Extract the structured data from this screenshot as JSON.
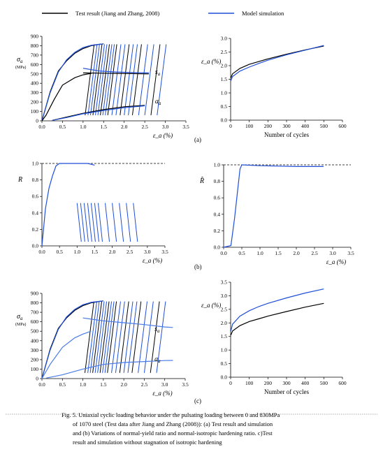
{
  "legend": {
    "test_label": "Test result (Jiang and Zhang, 2008)",
    "model_label": "Model simulation"
  },
  "colors": {
    "test": "#000000",
    "model": "#1f4fd8",
    "model_light": "#4a7be6"
  },
  "panel_labels": {
    "a": "(a)",
    "b": "(b)",
    "c": "(c)"
  },
  "caption": {
    "line1": "Fig. 5.  Uniaxial cyclic loading behavior under the pulsating loading between 0 and 830MPa",
    "line2": "of 1070 steel (Test data after Jiang and Zhang (2008)): (a) Test result and simulation",
    "line3": "and (b) Variations of normal-yield ratio and normal-isotropic hardening ratio. c)Test",
    "line4": "result and simulation without stagnation of isotropic hardening"
  },
  "chart_data": [
    {
      "id": "a-left",
      "type": "line",
      "ylabel": "σ_a",
      "yunit": "(MPa)",
      "xlabel": "ε_a (%)",
      "xlim": [
        0,
        3.5
      ],
      "ylim": [
        0,
        900
      ],
      "xticks": [
        "0.0",
        "0.5",
        "1.0",
        "1.5",
        "2.0",
        "2.5",
        "3.0",
        "3.5"
      ],
      "yticks": [
        "0",
        "100",
        "200",
        "300",
        "400",
        "500",
        "600",
        "700",
        "800",
        "900"
      ],
      "annotations": [
        "s_a",
        "a_a"
      ],
      "series": [
        {
          "role": "test",
          "x": [
            0,
            0.2,
            0.4,
            0.6,
            0.8,
            1.0,
            1.2,
            1.4,
            1.5
          ],
          "y": [
            0,
            310,
            530,
            640,
            720,
            770,
            800,
            815,
            820
          ]
        },
        {
          "role": "model",
          "x": [
            0,
            0.2,
            0.4,
            0.6,
            0.8,
            1.0,
            1.2,
            1.4,
            1.5
          ],
          "y": [
            0,
            300,
            520,
            650,
            730,
            780,
            805,
            815,
            820
          ]
        },
        {
          "role": "test",
          "x": [
            0,
            0.1,
            0.3,
            0.5,
            0.8,
            1.0,
            1.2
          ],
          "y": [
            0,
            60,
            230,
            380,
            460,
            490,
            505
          ]
        },
        {
          "role": "test",
          "x": [
            1.0,
            1.4,
            1.8,
            2.2,
            2.6
          ],
          "y": [
            510,
            508,
            505,
            503,
            500
          ]
        },
        {
          "role": "model",
          "x": [
            1.0,
            1.4,
            1.8,
            2.2,
            2.6
          ],
          "y": [
            560,
            530,
            520,
            515,
            510
          ]
        },
        {
          "role": "test",
          "x": [
            0.25,
            0.6,
            1.0,
            1.5,
            2.0,
            2.5
          ],
          "y": [
            5,
            40,
            80,
            120,
            150,
            165
          ]
        },
        {
          "role": "model",
          "x": [
            0.25,
            0.6,
            1.0,
            1.5,
            2.0,
            2.5
          ],
          "y": [
            5,
            35,
            75,
            110,
            140,
            160
          ]
        }
      ]
    },
    {
      "id": "a-right",
      "type": "line",
      "ylabel": "ε_a (%)",
      "xlabel": "Number of cycles",
      "xlim": [
        0,
        600
      ],
      "ylim": [
        0,
        3.0
      ],
      "xticks": [
        "0",
        "100",
        "200",
        "300",
        "400",
        "500",
        "600"
      ],
      "yticks": [
        "0.0",
        "0.5",
        "1.0",
        "1.5",
        "2.0",
        "2.5",
        "3.0"
      ],
      "series": [
        {
          "role": "test",
          "x": [
            1,
            10,
            50,
            100,
            150,
            200,
            300,
            400,
            500
          ],
          "y": [
            1.55,
            1.7,
            1.9,
            2.05,
            2.15,
            2.25,
            2.42,
            2.58,
            2.72
          ]
        },
        {
          "role": "model",
          "x": [
            1,
            10,
            50,
            100,
            150,
            200,
            300,
            400,
            500
          ],
          "y": [
            1.45,
            1.6,
            1.8,
            1.95,
            2.08,
            2.2,
            2.4,
            2.57,
            2.74
          ]
        }
      ]
    },
    {
      "id": "b-left",
      "type": "line",
      "ylabel": "R",
      "xlabel": "ε_a (%)",
      "xlim": [
        0,
        3.5
      ],
      "ylim": [
        0,
        1.0
      ],
      "xticks": [
        "0.0",
        "0.5",
        "1.0",
        "1.5",
        "2.0",
        "2.5",
        "3.0",
        "3.5"
      ],
      "yticks": [
        "0.0",
        "0.2",
        "0.4",
        "0.6",
        "0.8",
        "1.0"
      ],
      "series": [
        {
          "role": "model",
          "x": [
            0,
            0.1,
            0.2,
            0.3,
            0.4,
            0.5,
            1.3,
            1.5
          ],
          "y": [
            0,
            0.45,
            0.7,
            0.85,
            0.97,
            1.0,
            1.0,
            0.98
          ]
        }
      ]
    },
    {
      "id": "b-right",
      "type": "line",
      "ylabel": "R̂",
      "xlabel": "ε_a (%)",
      "xlim": [
        0,
        3.5
      ],
      "ylim": [
        0,
        1.0
      ],
      "xticks": [
        "0.0",
        "0.5",
        "1.0",
        "1.5",
        "2.0",
        "2.5",
        "3.0",
        "3.5"
      ],
      "yticks": [
        "0.0",
        "0.2",
        "0.4",
        "0.6",
        "0.8",
        "1.0"
      ],
      "series": [
        {
          "role": "model",
          "x": [
            0,
            0.2,
            0.3,
            0.4,
            0.45,
            0.5,
            1.0,
            1.5,
            2.0,
            2.75
          ],
          "y": [
            0,
            0.02,
            0.35,
            0.75,
            0.95,
            1.0,
            0.99,
            0.985,
            0.98,
            0.98
          ]
        }
      ]
    },
    {
      "id": "c-left",
      "type": "line",
      "ylabel": "σ_a",
      "yunit": "(MPa)",
      "xlabel": "ε_a (%)",
      "xlim": [
        0,
        3.5
      ],
      "ylim": [
        0,
        900
      ],
      "xticks": [
        "0.0",
        "0.5",
        "1.0",
        "1.5",
        "2.0",
        "2.5",
        "3.0",
        "3.5"
      ],
      "yticks": [
        "0",
        "100",
        "200",
        "300",
        "400",
        "500",
        "600",
        "700",
        "800",
        "900"
      ],
      "annotations": [
        "s_a",
        "a_a"
      ],
      "series": [
        {
          "role": "test",
          "x": [
            0,
            0.2,
            0.4,
            0.6,
            0.8,
            1.0,
            1.2,
            1.4,
            1.5
          ],
          "y": [
            0,
            310,
            530,
            640,
            720,
            770,
            800,
            815,
            820
          ]
        },
        {
          "role": "model",
          "x": [
            0,
            0.2,
            0.4,
            0.6,
            0.8,
            1.0,
            1.2,
            1.4,
            1.5
          ],
          "y": [
            0,
            300,
            520,
            650,
            730,
            780,
            805,
            815,
            820
          ]
        },
        {
          "role": "model_light",
          "x": [
            0,
            0.2,
            0.5,
            0.8,
            1.0,
            1.2
          ],
          "y": [
            0,
            150,
            330,
            430,
            470,
            500
          ]
        },
        {
          "role": "model_light",
          "x": [
            1.0,
            1.5,
            2.0,
            2.5,
            3.0,
            3.2
          ],
          "y": [
            640,
            610,
            590,
            570,
            545,
            540
          ]
        },
        {
          "role": "model_light",
          "x": [
            0.1,
            0.5,
            1.0,
            1.5,
            2.0,
            2.5,
            3.0,
            3.2
          ],
          "y": [
            5,
            40,
            100,
            150,
            170,
            180,
            190,
            192
          ]
        }
      ]
    },
    {
      "id": "c-right",
      "type": "line",
      "ylabel": "ε_a (%)",
      "xlabel": "Number of cycles",
      "xlim": [
        0,
        600
      ],
      "ylim": [
        0,
        3.5
      ],
      "xticks": [
        "0",
        "100",
        "200",
        "300",
        "400",
        "500",
        "600"
      ],
      "yticks": [
        "0.0",
        "0.5",
        "1.0",
        "1.5",
        "2.0",
        "2.5",
        "3.0",
        "3.5"
      ],
      "series": [
        {
          "role": "test",
          "x": [
            1,
            10,
            50,
            100,
            150,
            200,
            300,
            400,
            500
          ],
          "y": [
            1.55,
            1.7,
            1.9,
            2.05,
            2.15,
            2.25,
            2.42,
            2.58,
            2.72
          ]
        },
        {
          "role": "model",
          "x": [
            1,
            10,
            50,
            100,
            150,
            200,
            300,
            400,
            500
          ],
          "y": [
            1.7,
            1.95,
            2.25,
            2.45,
            2.6,
            2.72,
            2.92,
            3.1,
            3.25
          ]
        }
      ]
    }
  ]
}
